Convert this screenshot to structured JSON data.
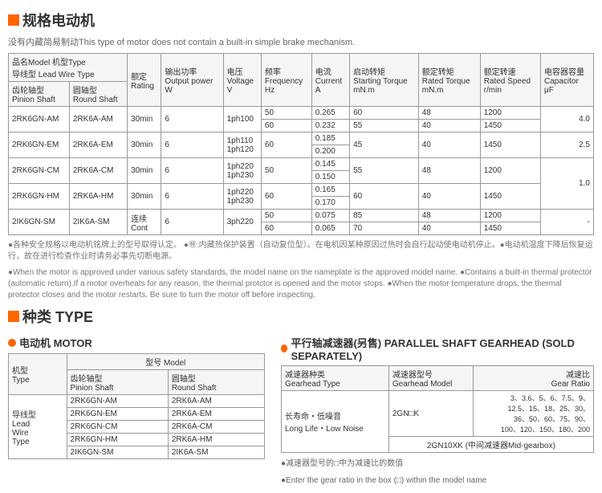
{
  "section1": {
    "title": "规格电动机",
    "subtitle": "没有内藏简易制动This type of motor does not contain a built-in simple brake mechanism."
  },
  "specTable": {
    "headers": {
      "model": "品名Model  机型Type\n导线型 Lead Wire Type",
      "pinion": "齿轮轴型\nPinion Shaft",
      "round": "圆轴型\nRound Shaft",
      "rating": "额定\nRating",
      "output": "输出功率\nOutput power\nW",
      "voltage": "电压\nVoltage\nV",
      "freq": "频率\nFrequency\nHz",
      "current": "电流\nCurrent\nA",
      "start": "启动转矩\nStarting Torque\nmN.m",
      "rated": "额定转矩\nRated Torque\nmN.m",
      "speed": "额定转速\nRated Speed\nr/min",
      "cap": "电容器容量\nCapacitor\nμF"
    },
    "rows": [
      {
        "pinion": "2RK6GN-AM",
        "round": "2RK6A-AM",
        "rating": "30min",
        "output": "6",
        "voltage": "1ph100",
        "freq": [
          "50",
          "60"
        ],
        "current": [
          "0.265",
          "0.232"
        ],
        "start": [
          "60",
          "55"
        ],
        "rated": [
          "48",
          "40"
        ],
        "speed": [
          "1200",
          "1450"
        ],
        "cap": "4.0"
      },
      {
        "pinion": "2RK6GN-EM",
        "round": "2RK6A-EM",
        "rating": "30min",
        "output": "6",
        "voltage": "1ph110\n1ph120",
        "freq": [
          "60"
        ],
        "current": [
          "0.185",
          "0.200"
        ],
        "start": [
          "45"
        ],
        "rated": [
          "40"
        ],
        "speed": [
          "1450"
        ],
        "cap": "2.5"
      },
      {
        "pinion": "2RK6GN-CM",
        "round": "2RK6A-CM",
        "rating": "30min",
        "output": "6",
        "voltage": "1ph220\n1ph230",
        "freq": [
          "50"
        ],
        "current": [
          "0.145",
          "0.150"
        ],
        "start": [
          "55"
        ],
        "rated": [
          "48"
        ],
        "speed": [
          "1200"
        ],
        "cap": "1.0",
        "capSpan": 2
      },
      {
        "pinion": "2RK6GN-HM",
        "round": "2RK6A-HM",
        "rating": "30min",
        "output": "6",
        "voltage": "1ph220\n1ph230",
        "freq": [
          "60"
        ],
        "current": [
          "0.165",
          "0.170"
        ],
        "start": [
          "60"
        ],
        "rated": [
          "40"
        ],
        "speed": [
          "1450"
        ]
      },
      {
        "pinion": "2IK6GN-SM",
        "round": "2IK6A-SM",
        "rating": "连续\nCont",
        "output": "6",
        "voltage": "3ph220",
        "freq": [
          "50",
          "60"
        ],
        "current": [
          "0.075",
          "0.065"
        ],
        "start": [
          "85",
          "70"
        ],
        "rated": [
          "48",
          "40"
        ],
        "speed": [
          "1200",
          "1450"
        ],
        "cap": "-"
      }
    ]
  },
  "notes": {
    "zh": "●各种安全规格以电动机铭牌上的型号取得认定。 ●㊕:内藏热保护装置（自动复位型）。在电机因某种原因过热时会自行起动使电动机停止。●电动机温度下降后恢复运行，故在进行检查作业时请务必事先切断电源。",
    "en": "●When the motor is approved under various safety standards, the model name on the nameplate is the approved model name. ●Contains a built-in thermal protector (automatic return).If a motor overheats for any reason, the thermal protctor is opened and the motor stops. ●When the motor temperature drops, the thermal protector closes and the motor restarts. Be sure to turn the motor off before inspecting."
  },
  "section2": {
    "title": "种类 TYPE",
    "motorTitle": "电动机 MOTOR",
    "gearTitle": "平行轴减速器(另售) PARALLEL SHAFT GEARHEAD (SOLD SEPARATELY)"
  },
  "motorTable": {
    "h_type": "机型\nType",
    "h_model": "型号 Model",
    "h_pinion": "齿轮轴型\nPinion Shaft",
    "h_round": "圆轴型\nRound Shaft",
    "leadwire": "导线型\nLead\nWire\nType",
    "rows": [
      {
        "p": "2RK6GN-AM",
        "r": "2RK6A-AM"
      },
      {
        "p": "2RK6GN-EM",
        "r": "2RK6A-EM"
      },
      {
        "p": "2RK6GN-CM",
        "r": "2RK6A-CM"
      },
      {
        "p": "2RK6GN-HM",
        "r": "2RK6A-HM"
      },
      {
        "p": "2IK6GN-SM",
        "r": "2IK6A-SM"
      }
    ]
  },
  "gearTable": {
    "h_type": "减速器种类\nGearhead Type",
    "h_model": "减速器型号\nGearhead Model",
    "h_ratio": "减速比\nGear Ratio",
    "life": "长寿命・低噪音\nLong Life・Low Noise",
    "model": "2GN□K",
    "ratios": "3、3.6、5、6、7.5、9、\n12.5、15、18、25、30、\n36、50、60、75、90、\n100、120、150、180、200",
    "mid": "2GN10XK (中间减速器Mid-gearbox)",
    "note1": "●减速器型号的□中为减速比的数值",
    "note2": "●Enter the gear ratio in the box (□) within the model name"
  }
}
